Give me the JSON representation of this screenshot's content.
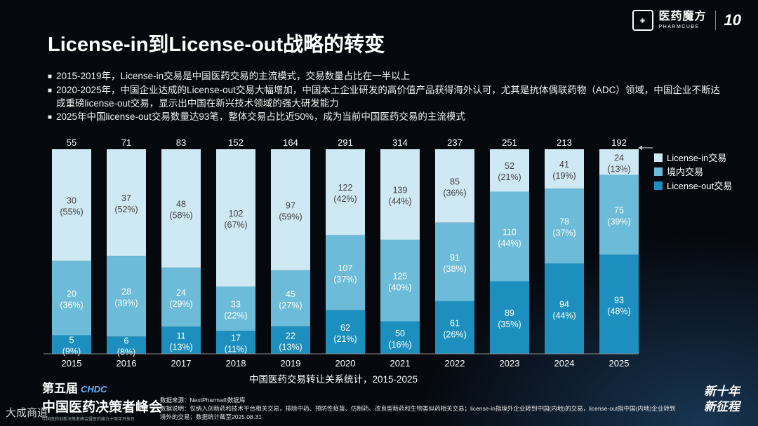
{
  "brand": {
    "name_cn": "医药魔方",
    "name_en": "PHARMCUBE",
    "anniversary": "10"
  },
  "title": "License-in到License-out战略的转变",
  "bullets": [
    "2015-2019年，License-in交易是中国医药交易的主流模式，交易数量占比在一半以上",
    "2020-2025年，中国企业达成的License-out交易大幅增加，中国本土企业研发的高价值产品获得海外认可，尤其是抗体偶联药物（ADC）领域，中国企业不断达成重磅license-out交易，显示出中国在新兴技术领域的强大研发能力",
    "2025年中国license-out交易数量达93笔，整体交易占比近50%，成为当前中国医药交易的主流模式"
  ],
  "chart_data": {
    "type": "bar",
    "stacked": true,
    "title": "",
    "xlabel": "中国医药交易转让关系统计，2015-2025",
    "ylabel": "",
    "categories": [
      "2015",
      "2016",
      "2017",
      "2018",
      "2019",
      "2020",
      "2021",
      "2022",
      "2023",
      "2024",
      "2025"
    ],
    "totals": [
      55,
      71,
      83,
      152,
      164,
      291,
      314,
      237,
      251,
      213,
      192
    ],
    "series": [
      {
        "name": "License-out交易",
        "color": "#1c8fbf",
        "values": [
          5,
          6,
          11,
          17,
          22,
          62,
          50,
          61,
          89,
          94,
          93
        ],
        "labels": [
          "(9%)",
          "(8%)",
          "(13%)",
          "(11%)",
          "(13%)",
          "(21%)",
          "(16%)",
          "(26%)",
          "(35%)",
          "(44%)",
          "(48%)"
        ]
      },
      {
        "name": "境内交易",
        "color": "#6bbbd9",
        "values": [
          20,
          28,
          24,
          33,
          45,
          107,
          125,
          91,
          110,
          78,
          75
        ],
        "labels": [
          "(36%)",
          "(39%)",
          "(29%)",
          "(22%)",
          "(27%)",
          "(37%)",
          "(40%)",
          "(38%)",
          "(44%)",
          "(37%)",
          "(39%)"
        ]
      },
      {
        "name": "License-in交易",
        "color": "#cfe9f4",
        "values": [
          30,
          37,
          48,
          102,
          97,
          122,
          139,
          85,
          52,
          41,
          24
        ],
        "labels": [
          "(55%)",
          "(52%)",
          "(58%)",
          "(67%)",
          "(59%)",
          "(42%)",
          "(44%)",
          "(36%)",
          "(21%)",
          "(19%)",
          "(13%)"
        ]
      }
    ],
    "legend": [
      "License-in交易",
      "境内交易",
      "License-out交易"
    ],
    "legend_position": "right"
  },
  "footer": {
    "conference_line1": "第五届",
    "conference_badge": "CHDC",
    "conference_line2": "中国医药决策者峰会",
    "conference_line3": "中国医药创新决策者峰会暨医药魔方十周年开放日",
    "source": "数据来源：NextPharma®数据库",
    "note": "数据说明：仅纳入创新药和技术平台相关交易，排除中药、预防性疫苗、仿制药、改良型新药和生物类似药相关交易；license-in指境外企业转到中国(内地)的交易，license-out指中国(内地)企业转到境外的交易；数据统计截至2025.08.31",
    "slogan_1": "新十年",
    "slogan_2": "新征程",
    "watermark": "大成商道"
  }
}
